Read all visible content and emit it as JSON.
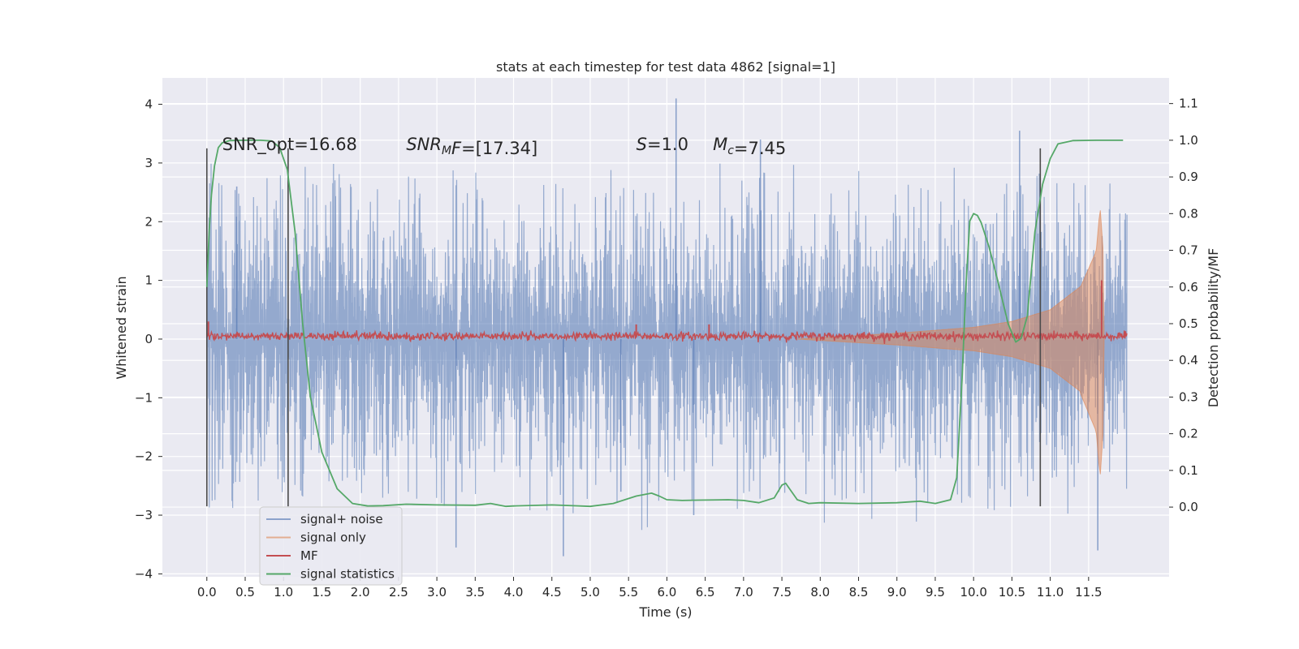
{
  "chart_data": {
    "type": "line",
    "title": "stats at each timestep for test data 4862 [signal=1]",
    "xlabel": "Time (s)",
    "ylabel": "Whitened strain",
    "ylabel_right": "Detection probability/MF",
    "xlim": [
      -0.58,
      12.55
    ],
    "ylim": [
      -4.05,
      4.45
    ],
    "ylim_right": [
      -0.19,
      1.17
    ],
    "x_ticks": [
      0.0,
      0.5,
      1.0,
      1.5,
      2.0,
      2.5,
      3.0,
      3.5,
      4.0,
      4.5,
      5.0,
      5.5,
      6.0,
      6.5,
      7.0,
      7.5,
      8.0,
      8.5,
      9.0,
      9.5,
      10.0,
      10.5,
      11.0,
      11.5
    ],
    "x_tick_labels": [
      "0.0",
      "0.5",
      "1.0",
      "1.5",
      "2.0",
      "2.5",
      "3.0",
      "3.5",
      "4.0",
      "4.5",
      "5.0",
      "5.5",
      "6.0",
      "6.5",
      "7.0",
      "7.5",
      "8.0",
      "8.5",
      "9.0",
      "9.5",
      "10.0",
      "10.5",
      "11.0",
      "11.5"
    ],
    "y_ticks": [
      -4,
      -3,
      -2,
      -1,
      0,
      1,
      2,
      3,
      4
    ],
    "y_tick_labels": [
      "−4",
      "−3",
      "−2",
      "−1",
      "0",
      "1",
      "2",
      "3",
      "4"
    ],
    "y_right_ticks": [
      0.0,
      0.1,
      0.2,
      0.3,
      0.4,
      0.5,
      0.6,
      0.7,
      0.8,
      0.9,
      1.0,
      1.1
    ],
    "y_right_tick_labels": [
      "0.0",
      "0.1",
      "0.2",
      "0.3",
      "0.4",
      "0.5",
      "0.6",
      "0.7",
      "0.8",
      "0.9",
      "1.0",
      "1.1"
    ],
    "grid": true,
    "legend_position": "lower-left",
    "annotations": [
      {
        "parts": [
          {
            "t": "SNR_opt=16.68",
            "i": false
          }
        ],
        "x": 0.2,
        "y": 3.3
      },
      {
        "parts": [
          {
            "t": "SNR",
            "i": true
          },
          {
            "t": "M",
            "i": true,
            "sub": true
          },
          {
            "t": "F",
            "i": true
          },
          {
            "t": "=[17.34]",
            "i": false
          }
        ],
        "x": 2.6,
        "y": 3.3
      },
      {
        "parts": [
          {
            "t": "S",
            "i": true
          },
          {
            "t": "=1.0",
            "i": false
          }
        ],
        "x": 5.6,
        "y": 3.3
      },
      {
        "parts": [
          {
            "t": "M",
            "i": true
          },
          {
            "t": "c",
            "i": true,
            "sub": true
          },
          {
            "t": "=7.45",
            "i": false
          }
        ],
        "x": 6.6,
        "y": 3.3
      }
    ],
    "vertical_lines": [
      {
        "x": 0.0,
        "y_range": [
          -2.85,
          3.25
        ]
      },
      {
        "x": 1.06,
        "y_range": [
          -2.85,
          3.25
        ]
      },
      {
        "x": 10.87,
        "y_range": [
          -2.85,
          3.25
        ]
      }
    ],
    "series": [
      {
        "name": "signal+ noise",
        "color": "#4c72b0",
        "x_range": [
          0.0,
          12.0
        ],
        "envelope_sigma": 1.0,
        "notable_peaks": [
          [
            0.39,
            2.6
          ],
          [
            6.12,
            4.1
          ],
          [
            7.22,
            3.4
          ],
          [
            10.6,
            3.55
          ],
          [
            5.4,
            -2.6
          ],
          [
            6.35,
            -3.0
          ],
          [
            11.62,
            -3.6
          ],
          [
            4.65,
            -3.7
          ],
          [
            3.25,
            -3.55
          ]
        ]
      },
      {
        "name": "signal only",
        "color": "#dd8452",
        "x_range": [
          7.7,
          11.72
        ],
        "description_points": [
          [
            7.7,
            0.0
          ],
          [
            9.0,
            0.1
          ],
          [
            10.0,
            0.2
          ],
          [
            10.5,
            0.3
          ],
          [
            11.0,
            0.5
          ],
          [
            11.4,
            0.9
          ],
          [
            11.6,
            1.5
          ],
          [
            11.65,
            2.25
          ],
          [
            11.7,
            1.3
          ]
        ]
      },
      {
        "name": "MF",
        "color": "#c44e52",
        "x_range": [
          0.0,
          12.0
        ],
        "baseline": 0.05,
        "spikes": [
          [
            0.02,
            0.3
          ],
          [
            5.6,
            0.25
          ],
          [
            6.55,
            0.25
          ],
          [
            11.67,
            1.0
          ]
        ]
      },
      {
        "name": "signal statistics",
        "color": "#55a868",
        "axis": "right",
        "x": [
          0.0,
          0.03,
          0.06,
          0.1,
          0.15,
          0.2,
          0.3,
          0.5,
          0.7,
          0.85,
          0.95,
          1.05,
          1.15,
          1.25,
          1.35,
          1.5,
          1.7,
          1.9,
          2.1,
          2.3,
          2.6,
          3.0,
          3.5,
          3.7,
          3.9,
          4.0,
          4.5,
          5.0,
          5.3,
          5.6,
          5.8,
          5.9,
          6.0,
          6.2,
          6.4,
          6.8,
          7.0,
          7.2,
          7.4,
          7.5,
          7.55,
          7.6,
          7.7,
          7.85,
          8.0,
          8.5,
          9.0,
          9.3,
          9.5,
          9.7,
          9.78,
          9.85,
          9.9,
          9.95,
          10.0,
          10.05,
          10.1,
          10.2,
          10.3,
          10.45,
          10.55,
          10.62,
          10.7,
          10.8,
          10.9,
          11.0,
          11.1,
          11.3,
          11.6,
          11.95
        ],
        "y": [
          0.6,
          0.75,
          0.85,
          0.93,
          0.98,
          0.993,
          0.999,
          1.0,
          1.0,
          0.998,
          0.98,
          0.92,
          0.75,
          0.5,
          0.3,
          0.15,
          0.05,
          0.01,
          0.003,
          0.004,
          0.008,
          0.006,
          0.005,
          0.01,
          0.002,
          0.003,
          0.006,
          0.002,
          0.01,
          0.03,
          0.038,
          0.03,
          0.02,
          0.018,
          0.019,
          0.02,
          0.018,
          0.012,
          0.025,
          0.06,
          0.065,
          0.05,
          0.02,
          0.01,
          0.012,
          0.01,
          0.012,
          0.016,
          0.01,
          0.02,
          0.08,
          0.35,
          0.6,
          0.78,
          0.8,
          0.795,
          0.775,
          0.71,
          0.63,
          0.5,
          0.45,
          0.46,
          0.52,
          0.75,
          0.88,
          0.95,
          0.99,
          0.999,
          1.0,
          1.0
        ]
      }
    ]
  }
}
